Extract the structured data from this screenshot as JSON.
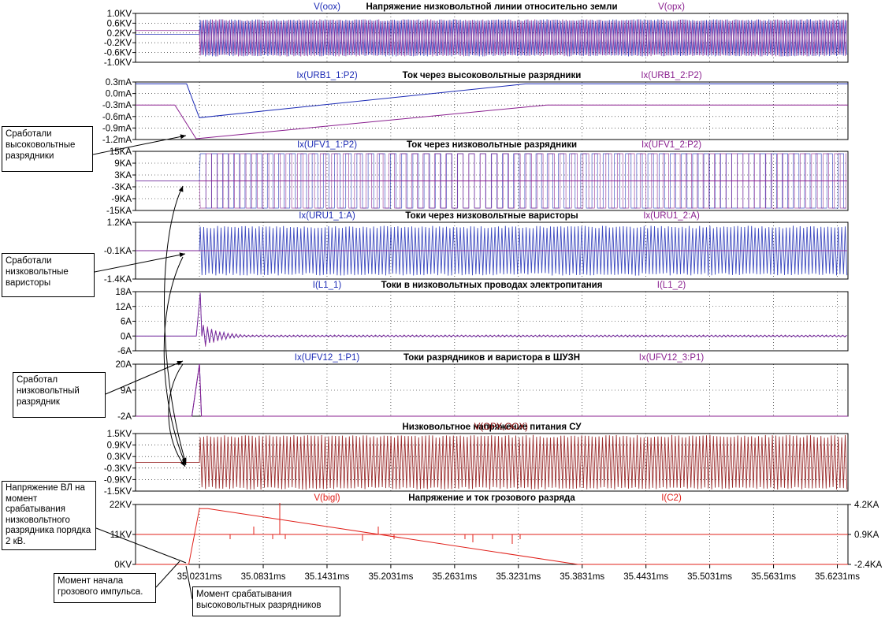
{
  "colors": {
    "blue": "#1c2bb5",
    "purple": "#8a1f8f",
    "maroon": "#8b0a0a",
    "red": "#e0201a",
    "axis": "#000000",
    "grid": "#000000",
    "title": "#000000"
  },
  "chart_data": [
    {
      "type": "line",
      "title": "Напряжение низковольтной линии относительно земли",
      "series": [
        {
          "name": "V(oox)",
          "color_key": "blue",
          "kind": "oscillation",
          "start": 35.0231,
          "pre_level": 0.15,
          "amplitude": 0.8
        },
        {
          "name": "V(opx)",
          "color_key": "purple",
          "kind": "oscillation",
          "start": 35.0231,
          "pre_level": 0.3,
          "amplitude": 0.8
        }
      ],
      "y_ticks": [
        "1.0KV",
        "0.6KV",
        "0.2KV",
        "-0.2KV",
        "-0.6KV",
        "-1.0KV"
      ],
      "ylim": [
        -1.0,
        1.0
      ]
    },
    {
      "type": "line",
      "title": "Ток через высоковольтные разрядники",
      "series": [
        {
          "name": "Ix(URB1_1:P2)",
          "color_key": "blue",
          "x": [
            34.963,
            35.011,
            35.023,
            35.33,
            35.633
          ],
          "y": [
            0.25,
            0.25,
            -0.63,
            0.25,
            0.25
          ]
        },
        {
          "name": "Ix(URB1_2:P2)",
          "color_key": "purple",
          "x": [
            34.963,
            35.0,
            35.02,
            35.35,
            35.633
          ],
          "y": [
            -0.3,
            -0.3,
            -1.18,
            -0.3,
            -0.3
          ]
        }
      ],
      "y_ticks": [
        "0.3mA",
        "0.0mA",
        "-0.3mA",
        "-0.6mA",
        "-0.9mA",
        "-1.2mA"
      ],
      "ylim": [
        -1.2,
        0.3
      ]
    },
    {
      "type": "line",
      "title": "Ток через низковольтные разрядники",
      "series": [
        {
          "name": "Ix(UFV1_1:P2)",
          "color_key": "blue",
          "kind": "square",
          "start": 35.0231,
          "amplitude": 14
        },
        {
          "name": "Ix(UFV1_2:P2)",
          "color_key": "purple",
          "kind": "square",
          "start": 35.0231,
          "amplitude": 14
        }
      ],
      "y_ticks": [
        "15KA",
        "9KA",
        "3KA",
        "-3KA",
        "-9KA",
        "-15KA"
      ],
      "ylim": [
        -15,
        15
      ]
    },
    {
      "type": "line",
      "title": "Токи через низковольтные варисторы",
      "series": [
        {
          "name": "Ix(URU1_1:A)",
          "color_key": "blue",
          "kind": "oscillation",
          "start": 35.0231,
          "amplitude": 1.2
        },
        {
          "name": "Ix(URU1_2:A)",
          "color_key": "purple",
          "kind": "oscillation",
          "start": 35.0231,
          "amplitude": 0.0
        }
      ],
      "y_ticks": [
        "1.2KA",
        "-0.1KA",
        "-1.4KA"
      ],
      "ylim": [
        -1.4,
        1.2
      ]
    },
    {
      "type": "line",
      "title": "Токи в низковольтных проводах электропитания",
      "series": [
        {
          "name": "I(L1_1)",
          "color_key": "blue",
          "kind": "transient",
          "start": 35.0231,
          "peak": 17.5
        },
        {
          "name": "I(L1_2)",
          "color_key": "purple",
          "kind": "transient",
          "start": 35.0231,
          "peak": 17.5
        }
      ],
      "y_ticks": [
        "18A",
        "12A",
        "6A",
        "0A",
        "-6A"
      ],
      "ylim": [
        -6,
        18
      ]
    },
    {
      "type": "line",
      "title": "Токи разрядников и варистора в ШУЗН",
      "series": [
        {
          "name": "Ix(UFV12_1:P1)",
          "color_key": "blue",
          "x": [
            34.963,
            35.016,
            35.0231,
            35.025,
            35.633
          ],
          "y": [
            -2,
            -2,
            20,
            -2,
            -2
          ]
        },
        {
          "name": "Ix(UFV12_3:P1)",
          "color_key": "purple",
          "x": [
            34.963,
            35.016,
            35.0231,
            35.025,
            35.633
          ],
          "y": [
            -2,
            -2,
            20,
            -2,
            -2
          ]
        }
      ],
      "y_ticks": [
        "20A",
        "9A",
        "-2A"
      ],
      "ylim": [
        -2,
        20
      ]
    },
    {
      "type": "line",
      "title": "Низковольтное напряжение питания СУ",
      "series": [
        {
          "name": "V(OPX,OOX)",
          "color_key": "maroon",
          "kind": "oscillation",
          "start": 35.0231,
          "amplitude": 1.5
        }
      ],
      "y_ticks": [
        "1.5KV",
        "0.9KV",
        "0.3KV",
        "-0.3KV",
        "-0.9KV",
        "-1.5KV"
      ],
      "ylim": [
        -1.5,
        1.5
      ]
    },
    {
      "type": "line",
      "title": "Напряжение и ток грозового разряда",
      "series": [
        {
          "name": "V(bigl)",
          "color_key": "red",
          "x": [
            34.963,
            35.013,
            35.0231,
            35.031,
            35.379,
            35.633
          ],
          "y": [
            0,
            0,
            20.5,
            20.5,
            0,
            0
          ]
        },
        {
          "name": "I(C2)",
          "color_key": "red",
          "axis": "right",
          "x": [
            34.963,
            35.014,
            35.633
          ],
          "y": [
            0.9,
            0.9,
            0.9
          ]
        }
      ],
      "y_ticks": [
        "22KV",
        "11KV",
        "0KV"
      ],
      "y2_ticks": [
        "4.2KA",
        "0.9KA",
        "-2.4KA"
      ],
      "ylim": [
        0,
        22
      ],
      "y2lim": [
        -2.4,
        4.2
      ]
    }
  ],
  "x_axis": {
    "range": [
      34.963,
      35.6331
    ],
    "ticks": [
      "35.0231ms",
      "35.0831ms",
      "35.1431ms",
      "35.2031ms",
      "35.2631ms",
      "35.3231ms",
      "35.3831ms",
      "35.4431ms",
      "35.5031ms",
      "35.5631ms",
      "35.6231ms"
    ],
    "tick_values": [
      35.0231,
      35.0831,
      35.1431,
      35.2031,
      35.2631,
      35.3231,
      35.3831,
      35.4431,
      35.5031,
      35.5631,
      35.6231
    ]
  },
  "annotations": [
    {
      "id": "hv-arresters",
      "text": [
        "Сработали",
        "высоковольтные",
        "разрядники"
      ]
    },
    {
      "id": "lv-varistors",
      "text": [
        "Сработали",
        "низковольтные",
        "варисторы"
      ]
    },
    {
      "id": "lv-arrester",
      "text": [
        "Сработал",
        "низковольтный",
        "разрядник"
      ]
    },
    {
      "id": "vl-voltage",
      "text": [
        "Напряжение ВЛ на",
        "момент",
        "срабатывания",
        "низковольтного",
        "разрядника порядка",
        "2 кВ."
      ]
    },
    {
      "id": "impulse-start",
      "text": [
        "Момент начала",
        "грозового импульса."
      ]
    },
    {
      "id": "hv-trigger",
      "text": [
        "Момент срабатывания",
        "высоковольтных разрядников"
      ]
    }
  ]
}
